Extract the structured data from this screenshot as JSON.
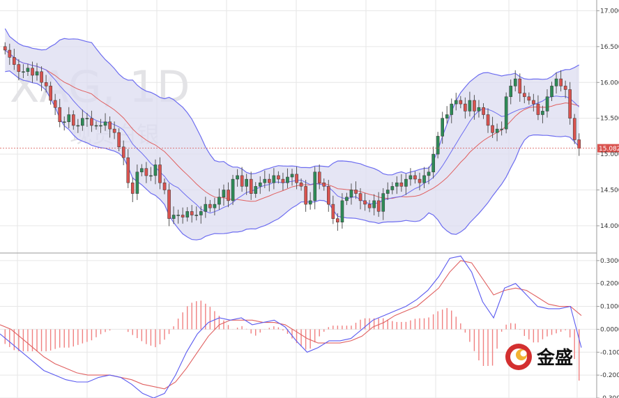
{
  "colors": {
    "up": "#2e8b57",
    "down": "#d9534f",
    "band_fill": "#dcdcf0",
    "band_line": "#6c6cf0",
    "ma_line": "#e06060",
    "macd_line": "#5a5af0",
    "signal_line": "#e06060",
    "hist": "#f08080",
    "grid": "#e6e6e6",
    "price_marker": "#d9534f"
  },
  "watermark": {
    "symbol": "XAG, 1D",
    "name": "现货白银"
  },
  "logo": {
    "text": "金盛"
  },
  "chart_data": [
    {
      "type": "candlestick",
      "y_ticks": [
        "14.000",
        "14.500",
        "15.000",
        "15.500",
        "16.000",
        "16.500",
        "17.000"
      ],
      "ylim": [
        13.62,
        17.15
      ],
      "last_price": "15.082",
      "last_price_value": 15.082,
      "overlays": [
        "bollinger bands",
        "moving average"
      ],
      "ohlc_closes": [
        16.45,
        16.35,
        16.25,
        16.15,
        16.15,
        16.2,
        16.1,
        16.15,
        16.0,
        15.95,
        15.75,
        15.65,
        15.45,
        15.45,
        15.55,
        15.4,
        15.4,
        15.5,
        15.5,
        15.4,
        15.4,
        15.4,
        15.45,
        15.35,
        15.3,
        15.1,
        14.95,
        14.6,
        14.45,
        14.75,
        14.8,
        14.7,
        14.7,
        14.85,
        14.6,
        14.5,
        14.1,
        14.15,
        14.15,
        14.12,
        14.2,
        14.15,
        14.15,
        14.2,
        14.3,
        14.25,
        14.3,
        14.4,
        14.5,
        14.35,
        14.65,
        14.7,
        14.55,
        14.65,
        14.45,
        14.55,
        14.6,
        14.65,
        14.6,
        14.7,
        14.65,
        14.6,
        14.68,
        14.72,
        14.6,
        14.55,
        14.3,
        14.35,
        14.75,
        14.6,
        14.55,
        14.3,
        14.1,
        14.05,
        14.35,
        14.4,
        14.5,
        14.45,
        14.35,
        14.3,
        14.25,
        14.35,
        14.2,
        14.45,
        14.5,
        14.55,
        14.6,
        14.55,
        14.65,
        14.7,
        14.65,
        14.6,
        14.7,
        14.75,
        15.0,
        15.25,
        15.5,
        15.55,
        15.7,
        15.75,
        15.7,
        15.6,
        15.75,
        15.6,
        15.65,
        15.55,
        15.4,
        15.3,
        15.35,
        15.35,
        15.8,
        15.95,
        16.05,
        15.85,
        15.8,
        15.75,
        15.7,
        15.55,
        15.6,
        15.8,
        15.95,
        16.05,
        15.95,
        15.9,
        15.5,
        15.2,
        15.08
      ]
    },
    {
      "type": "macd",
      "y_ticks": [
        "0.3000",
        "0.2000",
        "0.1000",
        "0.0000",
        "-0.100",
        "-0.200",
        "-0.300"
      ],
      "ylim": [
        -0.3,
        0.33
      ],
      "series": [
        {
          "values": [
            -0.02,
            -0.06,
            -0.1,
            -0.14,
            -0.18,
            -0.2,
            -0.22,
            -0.23,
            -0.23,
            -0.21,
            -0.2,
            -0.21,
            -0.24,
            -0.28,
            -0.3,
            -0.28,
            -0.2,
            -0.1,
            -0.02,
            0.03,
            0.05,
            0.04,
            0.05,
            0.02,
            0.03,
            0.04,
            0.01,
            -0.05,
            -0.1,
            -0.08,
            -0.05,
            -0.05,
            -0.04,
            0.0,
            0.04,
            0.06,
            0.08,
            0.1,
            0.13,
            0.17,
            0.23,
            0.31,
            0.32,
            0.25,
            0.12,
            0.05,
            0.18,
            0.2,
            0.15,
            0.1,
            0.09,
            0.09,
            0.1,
            -0.08
          ]
        },
        {
          "values": [
            0.02,
            0.0,
            -0.04,
            -0.08,
            -0.12,
            -0.15,
            -0.17,
            -0.19,
            -0.2,
            -0.2,
            -0.2,
            -0.21,
            -0.22,
            -0.24,
            -0.25,
            -0.26,
            -0.23,
            -0.17,
            -0.1,
            -0.03,
            0.02,
            0.04,
            0.04,
            0.04,
            0.03,
            0.03,
            0.02,
            -0.01,
            -0.04,
            -0.06,
            -0.06,
            -0.06,
            -0.05,
            -0.03,
            0.01,
            0.03,
            0.06,
            0.08,
            0.1,
            0.14,
            0.18,
            0.25,
            0.3,
            0.29,
            0.22,
            0.15,
            0.17,
            0.18,
            0.17,
            0.14,
            0.11,
            0.1,
            0.1,
            0.06
          ]
        }
      ]
    }
  ]
}
